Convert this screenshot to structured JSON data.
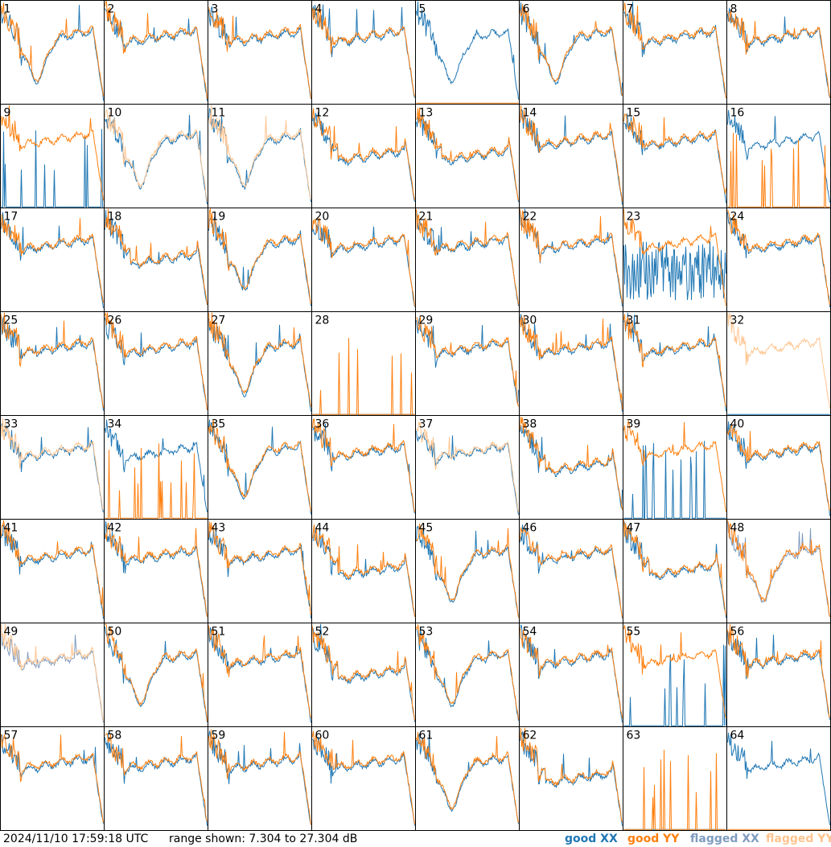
{
  "footer": {
    "timestamp": "2024/11/10 17:59:18 UTC",
    "range_text": "range shown: 7.304 to 27.304 dB"
  },
  "legend": {
    "good_xx": "good XX",
    "good_yy": "good YY",
    "flagged_xx": "flagged XX",
    "flagged_yy": "flagged YY"
  },
  "colors": {
    "good_xx": "#1f77b4",
    "good_yy": "#ff7f0e",
    "flagged_xx": "#7f9cbf",
    "flagged_yy": "#ffc48f",
    "border": "#000000"
  },
  "chart_data": {
    "type": "line",
    "panel_count": 64,
    "grid": "8x8",
    "y_range_db": [
      7.304,
      27.304
    ],
    "panels": [
      {
        "id": "1",
        "xx": "good",
        "yy": "good",
        "shape": "dip"
      },
      {
        "id": "2",
        "xx": "good",
        "yy": "good",
        "shape": "normal"
      },
      {
        "id": "3",
        "xx": "good",
        "yy": "good",
        "shape": "normal"
      },
      {
        "id": "4",
        "xx": "good",
        "yy": "good",
        "shape": "normal"
      },
      {
        "id": "5",
        "xx": "good",
        "yy": "dead",
        "shape": "dip"
      },
      {
        "id": "6",
        "xx": "good",
        "yy": "good",
        "shape": "dip"
      },
      {
        "id": "7",
        "xx": "good",
        "yy": "good",
        "shape": "normal"
      },
      {
        "id": "8",
        "xx": "good",
        "yy": "good",
        "shape": "normal"
      },
      {
        "id": "9",
        "xx": "spiky",
        "yy": "good",
        "shape": "normal"
      },
      {
        "id": "10",
        "xx": "good",
        "yy": "flagged",
        "shape": "dip"
      },
      {
        "id": "11",
        "xx": "good",
        "yy": "flagged",
        "shape": "dip"
      },
      {
        "id": "12",
        "xx": "good",
        "yy": "good",
        "shape": "falling"
      },
      {
        "id": "13",
        "xx": "good",
        "yy": "good",
        "shape": "falling"
      },
      {
        "id": "14",
        "xx": "good",
        "yy": "good",
        "shape": "normal"
      },
      {
        "id": "15",
        "xx": "good",
        "yy": "good",
        "shape": "normal"
      },
      {
        "id": "16",
        "xx": "good",
        "yy": "spiky",
        "shape": "normal"
      },
      {
        "id": "17",
        "xx": "good",
        "yy": "good",
        "shape": "normal"
      },
      {
        "id": "18",
        "xx": "good",
        "yy": "good",
        "shape": "falling"
      },
      {
        "id": "19",
        "xx": "good",
        "yy": "good",
        "shape": "dip"
      },
      {
        "id": "20",
        "xx": "good",
        "yy": "good",
        "shape": "normal"
      },
      {
        "id": "21",
        "xx": "good",
        "yy": "good",
        "shape": "normal"
      },
      {
        "id": "22",
        "xx": "good",
        "yy": "good",
        "shape": "normal"
      },
      {
        "id": "23",
        "xx": "noisy",
        "yy": "good",
        "shape": "normal"
      },
      {
        "id": "24",
        "xx": "good",
        "yy": "good",
        "shape": "normal"
      },
      {
        "id": "25",
        "xx": "good",
        "yy": "good",
        "shape": "normal"
      },
      {
        "id": "26",
        "xx": "good",
        "yy": "good",
        "shape": "normal"
      },
      {
        "id": "27",
        "xx": "good",
        "yy": "good",
        "shape": "dip"
      },
      {
        "id": "28",
        "xx": "dead",
        "yy": "spiky",
        "shape": "normal"
      },
      {
        "id": "29",
        "xx": "good",
        "yy": "good",
        "shape": "normal"
      },
      {
        "id": "30",
        "xx": "good",
        "yy": "good",
        "shape": "normal"
      },
      {
        "id": "31",
        "xx": "good",
        "yy": "good",
        "shape": "normal"
      },
      {
        "id": "32",
        "xx": "dead",
        "yy": "flagged",
        "shape": "normal"
      },
      {
        "id": "33",
        "xx": "good",
        "yy": "flagged",
        "shape": "normal"
      },
      {
        "id": "34",
        "xx": "good",
        "yy": "spiky",
        "shape": "normal"
      },
      {
        "id": "35",
        "xx": "good",
        "yy": "good",
        "shape": "dip"
      },
      {
        "id": "36",
        "xx": "good",
        "yy": "good",
        "shape": "normal"
      },
      {
        "id": "37",
        "xx": "good",
        "yy": "flagged",
        "shape": "normal"
      },
      {
        "id": "38",
        "xx": "good",
        "yy": "good",
        "shape": "falling"
      },
      {
        "id": "39",
        "xx": "spiky",
        "yy": "good",
        "shape": "normal"
      },
      {
        "id": "40",
        "xx": "good",
        "yy": "good",
        "shape": "normal"
      },
      {
        "id": "41",
        "xx": "good",
        "yy": "good",
        "shape": "normal"
      },
      {
        "id": "42",
        "xx": "good",
        "yy": "good",
        "shape": "normal"
      },
      {
        "id": "43",
        "xx": "good",
        "yy": "good",
        "shape": "normal"
      },
      {
        "id": "44",
        "xx": "good",
        "yy": "good",
        "shape": "falling"
      },
      {
        "id": "45",
        "xx": "good",
        "yy": "good",
        "shape": "dip"
      },
      {
        "id": "46",
        "xx": "good",
        "yy": "good",
        "shape": "normal"
      },
      {
        "id": "47",
        "xx": "good",
        "yy": "good",
        "shape": "falling"
      },
      {
        "id": "48",
        "xx": "flagged",
        "yy": "good",
        "shape": "dip"
      },
      {
        "id": "49",
        "xx": "flagged",
        "yy": "flagged",
        "shape": "normal"
      },
      {
        "id": "50",
        "xx": "good",
        "yy": "good",
        "shape": "dip"
      },
      {
        "id": "51",
        "xx": "good",
        "yy": "good",
        "shape": "normal"
      },
      {
        "id": "52",
        "xx": "good",
        "yy": "good",
        "shape": "falling"
      },
      {
        "id": "53",
        "xx": "good",
        "yy": "good",
        "shape": "dip"
      },
      {
        "id": "54",
        "xx": "good",
        "yy": "good",
        "shape": "normal"
      },
      {
        "id": "55",
        "xx": "spiky",
        "yy": "good",
        "shape": "normal"
      },
      {
        "id": "56",
        "xx": "good",
        "yy": "good",
        "shape": "normal"
      },
      {
        "id": "57",
        "xx": "good",
        "yy": "good",
        "shape": "normal"
      },
      {
        "id": "58",
        "xx": "good",
        "yy": "good",
        "shape": "normal"
      },
      {
        "id": "59",
        "xx": "good",
        "yy": "good",
        "shape": "normal"
      },
      {
        "id": "60",
        "xx": "good",
        "yy": "good",
        "shape": "normal"
      },
      {
        "id": "61",
        "xx": "good",
        "yy": "good",
        "shape": "dip"
      },
      {
        "id": "62",
        "xx": "good",
        "yy": "good",
        "shape": "falling"
      },
      {
        "id": "63",
        "xx": "dead",
        "yy": "spiky",
        "shape": "normal"
      },
      {
        "id": "64",
        "xx": "good",
        "yy": "dead",
        "shape": "normal"
      }
    ]
  }
}
